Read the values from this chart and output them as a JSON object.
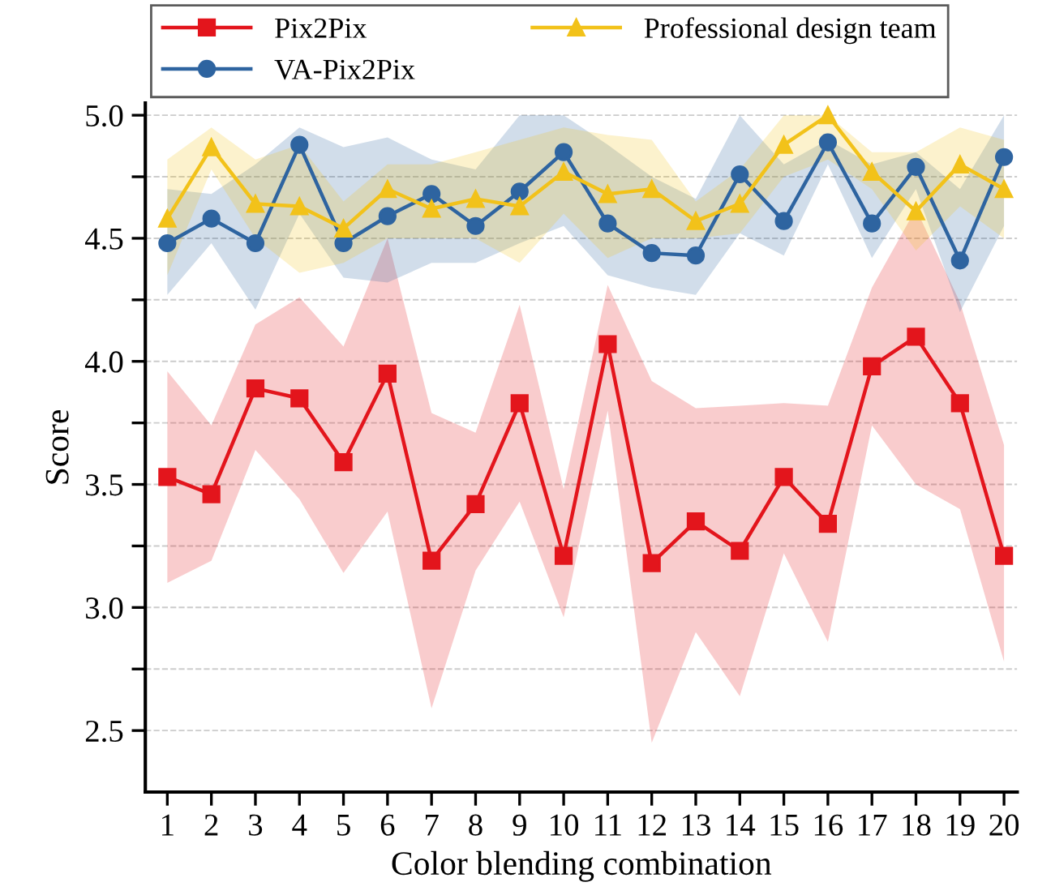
{
  "chart_data": {
    "type": "line",
    "xlabel": "Color blending combination",
    "ylabel": "Score",
    "x": [
      1,
      2,
      3,
      4,
      5,
      6,
      7,
      8,
      9,
      10,
      11,
      12,
      13,
      14,
      15,
      16,
      17,
      18,
      19,
      20
    ],
    "xlim": [
      0.5,
      20.3
    ],
    "xticks": [
      1,
      2,
      3,
      4,
      5,
      6,
      7,
      8,
      9,
      10,
      11,
      12,
      13,
      14,
      15,
      16,
      17,
      18,
      19,
      20
    ],
    "ylim": [
      2.25,
      5.05
    ],
    "yticks": [
      {
        "value": 2.5,
        "label": "2.5"
      },
      {
        "value": 2.75,
        "label": null
      },
      {
        "value": 3.0,
        "label": "3.0"
      },
      {
        "value": 3.25,
        "label": null
      },
      {
        "value": 3.5,
        "label": "3.5"
      },
      {
        "value": 3.75,
        "label": null
      },
      {
        "value": 4.0,
        "label": "4.0"
      },
      {
        "value": 4.25,
        "label": null
      },
      {
        "value": 4.5,
        "label": "4.5"
      },
      {
        "value": 4.75,
        "label": null
      },
      {
        "value": 5.0,
        "label": "5.0"
      }
    ],
    "grid": "y",
    "legend": "top",
    "line_style": "solid",
    "series": [
      {
        "name": "Pix2Pix",
        "color": "#e3151c",
        "marker": "square",
        "values": [
          3.53,
          3.46,
          3.89,
          3.85,
          3.59,
          3.95,
          3.19,
          3.42,
          3.83,
          3.21,
          4.07,
          3.18,
          3.35,
          3.23,
          3.53,
          3.34,
          3.98,
          4.1,
          3.83,
          3.21
        ],
        "lower": [
          3.1,
          3.19,
          3.64,
          3.44,
          3.14,
          3.39,
          2.59,
          3.15,
          3.43,
          2.96,
          3.8,
          2.45,
          2.9,
          2.64,
          3.22,
          2.86,
          3.74,
          3.5,
          3.4,
          2.78
        ],
        "upper": [
          3.96,
          3.74,
          4.15,
          4.26,
          4.06,
          4.5,
          3.79,
          3.71,
          4.23,
          3.48,
          4.31,
          3.92,
          3.81,
          3.82,
          3.83,
          3.82,
          4.3,
          4.62,
          4.24,
          3.66
        ]
      },
      {
        "name": "VA-Pix2Pix",
        "color": "#2e64a0",
        "marker": "circle",
        "values": [
          4.48,
          4.58,
          4.48,
          4.88,
          4.48,
          4.59,
          4.68,
          4.55,
          4.69,
          4.85,
          4.56,
          4.44,
          4.43,
          4.76,
          4.57,
          4.89,
          4.56,
          4.79,
          4.41,
          4.83
        ],
        "lower": [
          4.27,
          4.48,
          4.21,
          4.6,
          4.34,
          4.32,
          4.4,
          4.4,
          4.48,
          4.55,
          4.35,
          4.3,
          4.27,
          4.52,
          4.43,
          4.8,
          4.42,
          4.7,
          4.2,
          4.55
        ],
        "upper": [
          4.7,
          4.68,
          4.8,
          4.95,
          4.87,
          4.91,
          4.82,
          4.78,
          5.0,
          5.0,
          4.88,
          4.75,
          4.66,
          5.0,
          4.8,
          4.9,
          4.8,
          4.85,
          4.7,
          5.0
        ]
      },
      {
        "name": "Professional design team",
        "color": "#f2c21a",
        "marker": "triangle",
        "values": [
          4.58,
          4.87,
          4.64,
          4.63,
          4.54,
          4.7,
          4.62,
          4.66,
          4.63,
          4.77,
          4.68,
          4.7,
          4.57,
          4.64,
          4.88,
          5.0,
          4.77,
          4.61,
          4.8,
          4.7
        ],
        "lower": [
          4.35,
          4.78,
          4.5,
          4.36,
          4.4,
          4.5,
          4.5,
          4.5,
          4.4,
          4.6,
          4.42,
          4.5,
          4.5,
          4.52,
          4.75,
          4.82,
          4.7,
          4.45,
          4.63,
          4.5
        ],
        "upper": [
          4.82,
          4.95,
          4.82,
          4.88,
          4.65,
          4.8,
          4.8,
          4.85,
          4.9,
          4.95,
          4.92,
          4.9,
          4.65,
          4.78,
          5.0,
          5.0,
          4.85,
          4.85,
          4.95,
          4.9
        ]
      }
    ]
  }
}
